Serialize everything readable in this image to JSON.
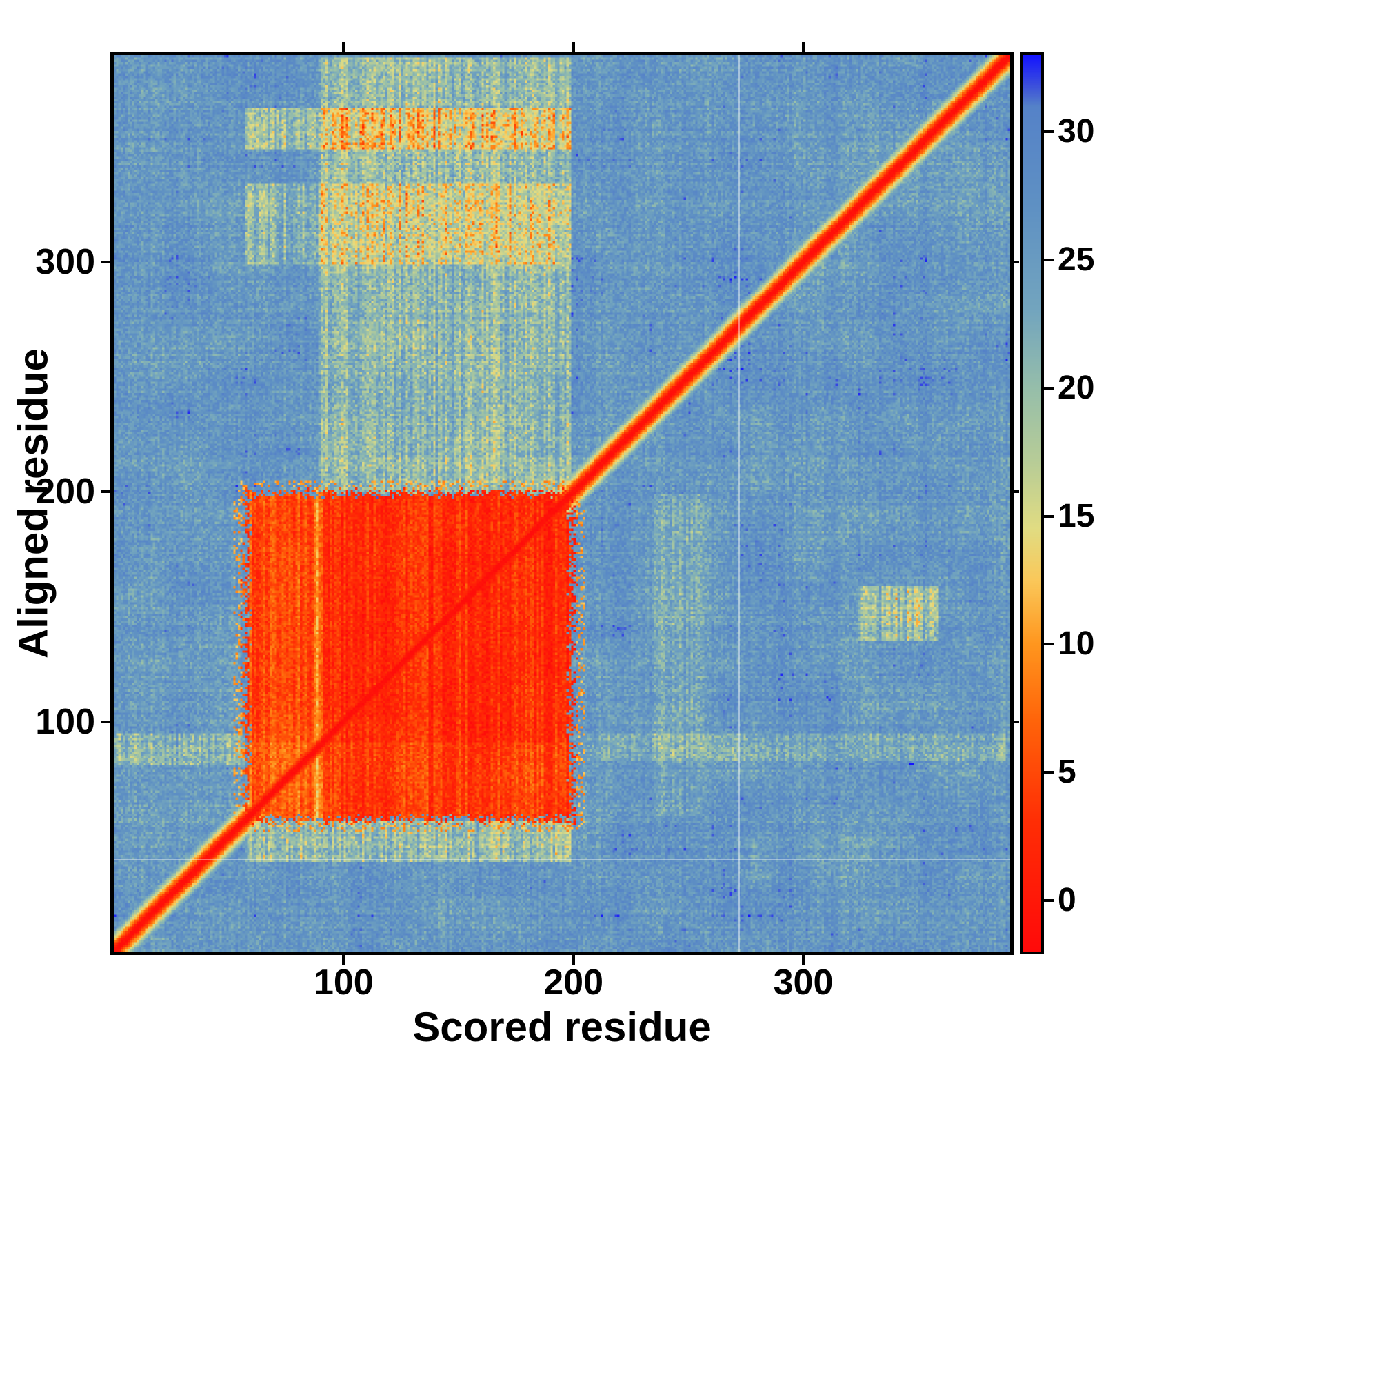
{
  "chart_data": {
    "type": "heatmap",
    "title": "",
    "xlabel": "Scored residue",
    "ylabel": "Aligned residue",
    "x_range": [
      0,
      390
    ],
    "y_range": [
      0,
      390
    ],
    "x_ticks": [
      100,
      200,
      300
    ],
    "y_ticks": [
      100,
      200,
      300
    ],
    "grid": false,
    "n_residues": 390,
    "colorbar": {
      "range": [
        -2,
        33
      ],
      "ticks": [
        0,
        5,
        10,
        15,
        20,
        25,
        30
      ],
      "colormap_stops": [
        [
          -2,
          "#ff0a0a"
        ],
        [
          3,
          "#ff2d05"
        ],
        [
          7,
          "#ff640a"
        ],
        [
          10,
          "#ff961e"
        ],
        [
          12.5,
          "#fac85a"
        ],
        [
          14.5,
          "#e1dc82"
        ],
        [
          17,
          "#b9cd96"
        ],
        [
          20,
          "#96beaa"
        ],
        [
          23,
          "#73a5be"
        ],
        [
          27,
          "#5f91c3"
        ],
        [
          31,
          "#5582c8"
        ],
        [
          31.8,
          "#3c50dc"
        ],
        [
          33,
          "#1414ff"
        ]
      ]
    },
    "features": {
      "background_value": 26,
      "diagonal_value": -2,
      "diagonal_halo_width": 10,
      "domain_block": {
        "x": [
          58,
          200
        ],
        "y": [
          58,
          200
        ],
        "value": 3
      },
      "block_pale_seam_x": [
        88,
        91
      ],
      "streaks": [
        {
          "cols": [
            90,
            200
          ],
          "rows": [
            200,
            390
          ],
          "strength": 4.5
        },
        {
          "cols": [
            58,
            200
          ],
          "rows": [
            350,
            368
          ],
          "strength": 5
        },
        {
          "cols": [
            58,
            200
          ],
          "rows": [
            300,
            335
          ],
          "strength": 4
        },
        {
          "cols": [
            58,
            200
          ],
          "rows": [
            40,
            58
          ],
          "strength": 5
        },
        {
          "cols": [
            0,
            58
          ],
          "rows": [
            82,
            96
          ],
          "strength": 4
        },
        {
          "cols": [
            200,
            390
          ],
          "rows": [
            84,
            96
          ],
          "strength": 2.5
        },
        {
          "cols": [
            325,
            360
          ],
          "rows": [
            136,
            160
          ],
          "strength": 5
        },
        {
          "cols": [
            236,
            258
          ],
          "rows": [
            60,
            200
          ],
          "strength": 2
        }
      ],
      "white_reference_lines": {
        "x": 272,
        "y": 40
      },
      "outlier_points": [
        {
          "x": 347,
          "y": 82,
          "value": 33
        }
      ]
    }
  }
}
